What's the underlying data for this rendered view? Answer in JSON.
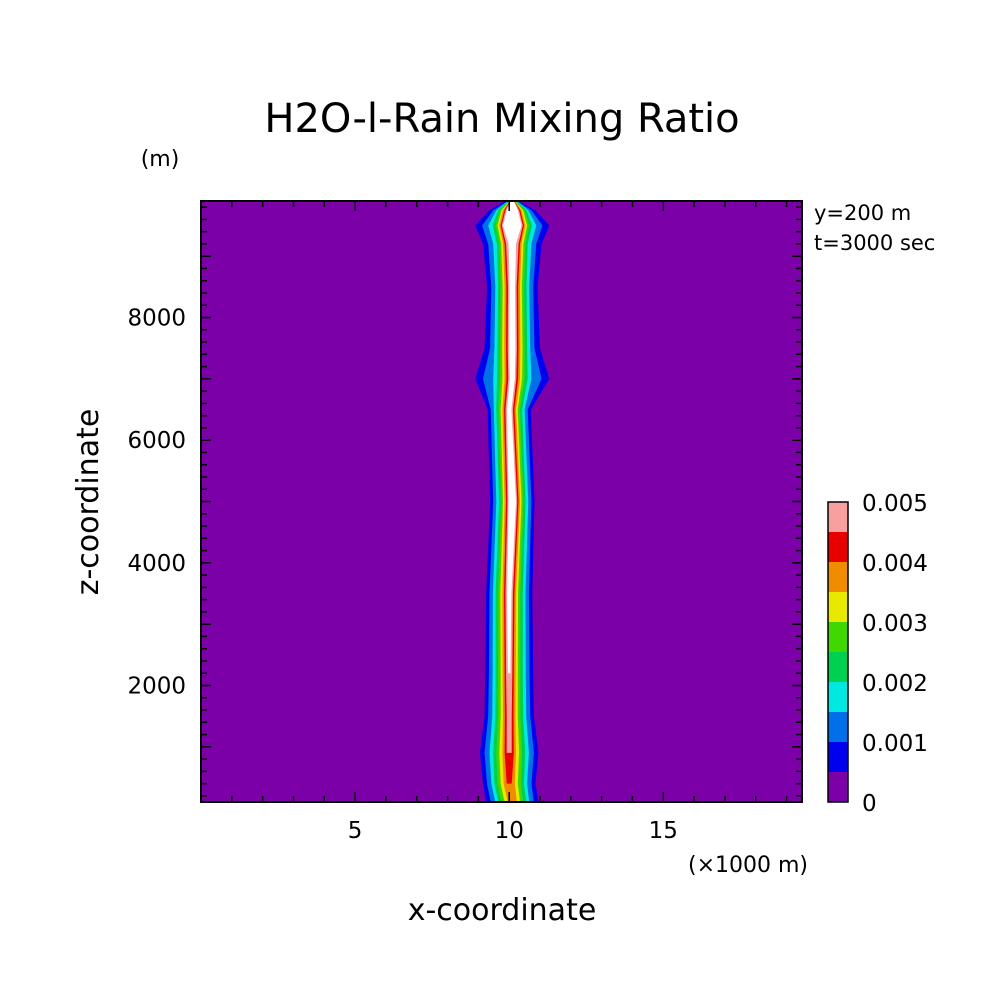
{
  "chart_data": {
    "type": "heatmap",
    "title": "H2O-l-Rain Mixing Ratio",
    "xlabel": "x-coordinate",
    "ylabel": "z-coordinate",
    "x_unit": "(×1000 m)",
    "y_unit": "(m)",
    "annotations": [
      "y=200 m",
      "t=3000 sec"
    ],
    "xlim": [
      0,
      19.5
    ],
    "ylim": [
      100,
      9900
    ],
    "x_ticks": [
      5,
      10,
      15
    ],
    "x_tick_labels": [
      "5",
      "10",
      "15"
    ],
    "y_ticks": [
      2000,
      4000,
      6000,
      8000
    ],
    "y_tick_labels": [
      "2000",
      "4000",
      "6000",
      "8000"
    ],
    "colorbar": {
      "levels": [
        0,
        0.0005,
        0.001,
        0.0015,
        0.002,
        0.0025,
        0.003,
        0.0035,
        0.004,
        0.0045,
        0.005
      ],
      "colors": [
        "#7b00a8",
        "#0000ee",
        "#0070e8",
        "#00e8e0",
        "#00d050",
        "#40d800",
        "#e8e800",
        "#f08c00",
        "#e80000",
        "#f8a0a0"
      ],
      "tick_labels": [
        "0",
        "0.001",
        "0.002",
        "0.003",
        "0.004",
        "0.005"
      ],
      "tick_values": [
        0,
        0.001,
        0.002,
        0.003,
        0.004,
        0.005
      ]
    },
    "plume_profile": [
      {
        "z": 100,
        "center": 10.1,
        "w": [
          0.85,
          0.7,
          0.55,
          0.45,
          0.35,
          0.25,
          0.15,
          0,
          0,
          0
        ]
      },
      {
        "z": 400,
        "center": 10.0,
        "w": [
          0.85,
          0.72,
          0.58,
          0.48,
          0.38,
          0.28,
          0.18,
          0.08,
          0,
          0
        ]
      },
      {
        "z": 900,
        "center": 10.0,
        "w": [
          0.95,
          0.8,
          0.64,
          0.52,
          0.42,
          0.32,
          0.22,
          0.15,
          0.08,
          0
        ]
      },
      {
        "z": 1500,
        "center": 10.0,
        "w": [
          0.8,
          0.68,
          0.55,
          0.45,
          0.36,
          0.28,
          0.2,
          0.14,
          0.08,
          0
        ]
      },
      {
        "z": 2200,
        "center": 10.0,
        "w": [
          0.78,
          0.66,
          0.54,
          0.44,
          0.36,
          0.28,
          0.21,
          0.15,
          0.1,
          0.04
        ]
      },
      {
        "z": 3500,
        "center": 10.0,
        "w": [
          0.75,
          0.64,
          0.53,
          0.44,
          0.36,
          0.29,
          0.22,
          0.17,
          0.12,
          0.07
        ]
      },
      {
        "z": 5000,
        "center": 10.1,
        "w": [
          0.72,
          0.62,
          0.52,
          0.43,
          0.36,
          0.3,
          0.25,
          0.2,
          0.16,
          0.12
        ]
      },
      {
        "z": 6500,
        "center": 10.0,
        "w": [
          0.7,
          0.6,
          0.5,
          0.42,
          0.35,
          0.28,
          0.22,
          0.17,
          0.12,
          0.07
        ]
      },
      {
        "z": 7000,
        "center": 10.1,
        "w": [
          1.2,
          0.95,
          0.62,
          0.5,
          0.4,
          0.32,
          0.25,
          0.19,
          0.13,
          0.08
        ]
      },
      {
        "z": 7500,
        "center": 10.1,
        "w": [
          0.9,
          0.72,
          0.58,
          0.48,
          0.4,
          0.33,
          0.26,
          0.2,
          0.15,
          0.1
        ]
      },
      {
        "z": 8500,
        "center": 10.1,
        "w": [
          0.82,
          0.68,
          0.55,
          0.46,
          0.38,
          0.31,
          0.25,
          0.19,
          0.14,
          0.09
        ]
      },
      {
        "z": 9200,
        "center": 10.1,
        "w": [
          0.95,
          0.78,
          0.62,
          0.5,
          0.42,
          0.36,
          0.3,
          0.25,
          0.2,
          0.12
        ]
      },
      {
        "z": 9500,
        "center": 10.1,
        "w": [
          1.2,
          0.98,
          0.78,
          0.64,
          0.55,
          0.48,
          0.42,
          0.38,
          0.34,
          0.3
        ]
      },
      {
        "z": 9750,
        "center": 10.1,
        "w": [
          0.75,
          0.62,
          0.52,
          0.46,
          0.4,
          0.35,
          0.3,
          0.26,
          0.22,
          0.18
        ]
      },
      {
        "z": 9900,
        "center": 10.1,
        "w": [
          0.2,
          0.16,
          0.14,
          0.12,
          0.1,
          0.09,
          0.08,
          0.07,
          0.06,
          0.05
        ]
      }
    ]
  }
}
